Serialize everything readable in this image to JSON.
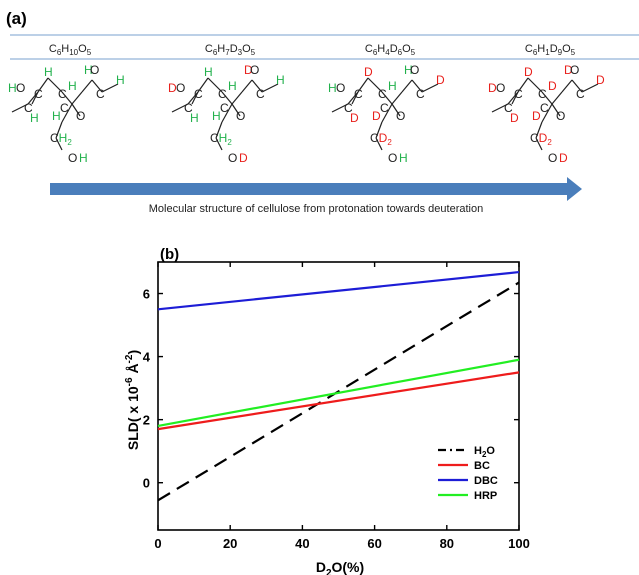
{
  "panel_a": {
    "label": "(a)",
    "formulas": [
      [
        {
          "t": "C"
        },
        {
          "s": "6"
        },
        {
          "t": "H"
        },
        {
          "s": "10"
        },
        {
          "t": "O"
        },
        {
          "s": "5"
        }
      ],
      [
        {
          "t": "C"
        },
        {
          "s": "6"
        },
        {
          "t": "H"
        },
        {
          "s": "7"
        },
        {
          "t": "D"
        },
        {
          "s": "3"
        },
        {
          "t": "O"
        },
        {
          "s": "5"
        }
      ],
      [
        {
          "t": "C"
        },
        {
          "s": "6"
        },
        {
          "t": "H"
        },
        {
          "s": "4"
        },
        {
          "t": "D"
        },
        {
          "s": "6"
        },
        {
          "t": "O"
        },
        {
          "s": "5"
        }
      ],
      [
        {
          "t": "C"
        },
        {
          "s": "6"
        },
        {
          "t": "H"
        },
        {
          "s": "1"
        },
        {
          "t": "D"
        },
        {
          "s": "9"
        },
        {
          "t": "O"
        },
        {
          "s": "5"
        }
      ]
    ],
    "structures": [
      {
        "O2": "H",
        "O3": "H",
        "H2": "H",
        "H3": "H",
        "H4": "H",
        "H1": "H",
        "H5": "H",
        "CH2": "H",
        "O6": "H"
      },
      {
        "O2": "D",
        "O3": "D",
        "H2": "H",
        "H3": "H",
        "H4": "H",
        "H1": "H",
        "H5": "H",
        "CH2": "H",
        "O6": "D"
      },
      {
        "O2": "H",
        "O3": "H",
        "H2": "D",
        "H3": "H",
        "H4": "D",
        "H1": "D",
        "H5": "D",
        "CH2": "D",
        "O6": "H"
      },
      {
        "O2": "D",
        "O3": "D",
        "H2": "D",
        "H3": "D",
        "H4": "D",
        "H1": "D",
        "H5": "D",
        "CH2": "D",
        "O6": "D"
      }
    ],
    "arrow_caption": "Molecular structure of cellulose from protonation towards deuteration",
    "colors": {
      "H": "#22b14c",
      "D": "#e8201c",
      "bond": "#222222",
      "arrow": "#4a7ebb",
      "rule": "#7aa2cf"
    }
  },
  "panel_b": {
    "label": "(b)",
    "xlabel_main": "D",
    "xlabel_sub": "2",
    "xlabel_rest": "O(%)",
    "ylabel_main": "SLD( x 10",
    "ylabel_sup1": "-6",
    "ylabel_mid": " Å",
    "ylabel_sup2": "-2",
    "ylabel_end": ")"
  },
  "chart_data": {
    "type": "line",
    "x_label": "D2O(%)",
    "y_label": "SLD( x 10-6 Å-2)",
    "xlim": [
      0,
      100
    ],
    "ylim": [
      -1.5,
      7
    ],
    "xticks": [
      0,
      20,
      40,
      60,
      80,
      100
    ],
    "yticks": [
      0,
      2,
      4,
      6
    ],
    "legend_position": "bottom-right",
    "series": [
      {
        "name": "H2O",
        "name_main": "H",
        "name_sub": "2",
        "name_rest": "O",
        "color": "#000000",
        "dash": "dashed",
        "x": [
          0,
          100
        ],
        "y": [
          -0.56,
          6.35
        ]
      },
      {
        "name": "BC",
        "color": "#ee1c1c",
        "dash": "solid",
        "x": [
          0,
          100
        ],
        "y": [
          1.7,
          3.5
        ]
      },
      {
        "name": "DBC",
        "color": "#1d1dd6",
        "dash": "solid",
        "x": [
          0,
          100
        ],
        "y": [
          5.5,
          6.68
        ]
      },
      {
        "name": "HRP",
        "color": "#22ee22",
        "dash": "solid",
        "x": [
          0,
          100
        ],
        "y": [
          1.8,
          3.9
        ]
      }
    ]
  }
}
